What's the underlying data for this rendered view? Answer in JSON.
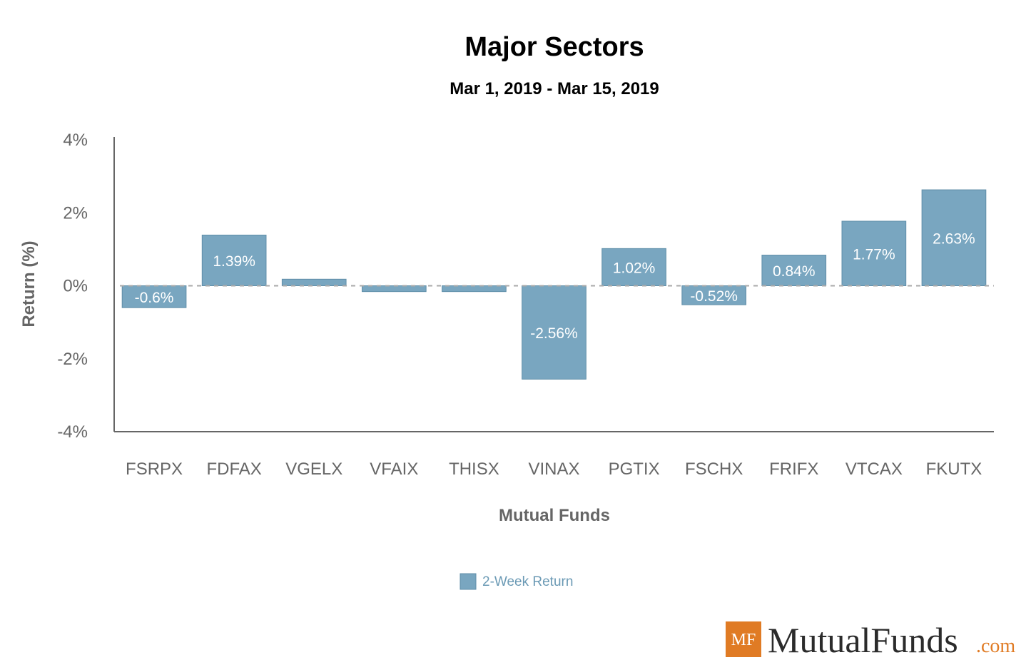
{
  "chart_data": {
    "type": "bar",
    "title": "Major Sectors",
    "subtitle": "Mar 1, 2019 - Mar 15, 2019",
    "xlabel": "Mutual Funds",
    "ylabel": "Return (%)",
    "ylim": [
      -4,
      4
    ],
    "yticks": [
      4,
      2,
      0,
      -2,
      -4
    ],
    "ytick_labels": [
      "4%",
      "2%",
      "0%",
      "-2%",
      "-4%"
    ],
    "categories": [
      "FSRPX",
      "FDFAX",
      "VGELX",
      "VFAIX",
      "THISX",
      "VINAX",
      "PGTIX",
      "FSCHX",
      "FRIFX",
      "VTCAX",
      "FKUTX"
    ],
    "series": [
      {
        "name": "2-Week Return",
        "values": [
          -0.6,
          1.39,
          0.18,
          -0.16,
          -0.16,
          -2.56,
          1.02,
          -0.52,
          0.84,
          1.77,
          2.63
        ],
        "labels": [
          "-0.6%",
          "1.39%",
          "",
          "",
          "",
          "-2.56%",
          "1.02%",
          "-0.52%",
          "0.84%",
          "1.77%",
          "2.63%"
        ],
        "color": "#79a6c0"
      }
    ],
    "zero_line": "dashed",
    "legend_position": "bottom-center"
  },
  "brand": {
    "badge": "MF",
    "name": "MutualFunds",
    "suffix": ".com",
    "badge_color": "#e07b24"
  }
}
